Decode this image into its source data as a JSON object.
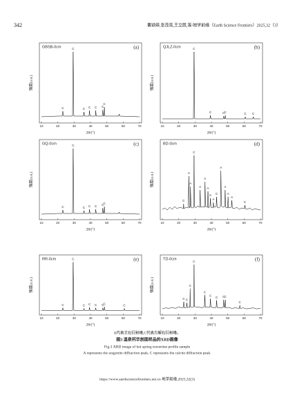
{
  "header": {
    "page": "342",
    "running_title": "曹颖婷,张茂亮,王立胜,等/地学前缘（Earth Science Frontiers）2025,32（3）"
  },
  "chart_data": [
    {
      "type": "line",
      "title": "GBSB-0cm",
      "panel": "(a)",
      "color": "#000000",
      "xlabel": "2θ/(°)",
      "ylabel": "强度(a.u.)",
      "xlim": [
        10,
        70
      ],
      "xticks": [
        10,
        20,
        30,
        40,
        50,
        60,
        70
      ],
      "ylim": [
        0,
        110
      ],
      "x": [
        10,
        20,
        22.7,
        23.1,
        23.5,
        29,
        29.4,
        29.8,
        35.7,
        36,
        36.3,
        39.1,
        39.4,
        39.7,
        43,
        43.2,
        43.5,
        47.2,
        47.5,
        47.8,
        48.2,
        48.5,
        48.8,
        57.2,
        57.5,
        57.8,
        70
      ],
      "values": [
        6,
        7,
        7,
        14,
        7,
        7,
        100,
        7,
        7,
        13,
        7,
        7,
        15,
        7,
        7,
        15,
        7,
        7,
        16,
        7,
        7,
        20,
        7,
        7,
        10,
        7,
        6
      ],
      "annotations": [
        {
          "text": "C",
          "x": 23.1,
          "y": 14
        },
        {
          "text": "C",
          "x": 29.4,
          "y": 100
        },
        {
          "text": "C",
          "x": 36,
          "y": 13
        },
        {
          "text": "C",
          "x": 39.4,
          "y": 15
        },
        {
          "text": "C",
          "x": 43.2,
          "y": 15
        },
        {
          "text": "C",
          "x": 47.5,
          "y": 16
        },
        {
          "text": "C",
          "x": 48.5,
          "y": 20
        }
      ]
    },
    {
      "type": "line",
      "title": "QJLZ-0cm",
      "panel": "(b)",
      "color": "#000000",
      "xlabel": "2θ/(°)",
      "ylabel": "强度(a.u.)",
      "xlim": [
        10,
        70
      ],
      "xticks": [
        10,
        20,
        30,
        40,
        50,
        60,
        70
      ],
      "ylim": [
        0,
        110
      ],
      "x": [
        10,
        29,
        29.4,
        29.8,
        39.1,
        39.4,
        39.7,
        47.2,
        47.5,
        47.8,
        48.2,
        48.5,
        48.8,
        60.4,
        60.7,
        61,
        65.3,
        65.6,
        65.9,
        70
      ],
      "values": [
        3,
        3,
        100,
        3,
        3,
        8,
        3,
        3,
        7,
        3,
        3,
        8,
        3,
        3,
        6,
        3,
        3,
        6,
        3,
        3
      ],
      "annotations": [
        {
          "text": "C",
          "x": 29.4,
          "y": 100
        },
        {
          "text": "C",
          "x": 39.4,
          "y": 8
        },
        {
          "text": "C",
          "x": 47.5,
          "y": 7
        },
        {
          "text": "C",
          "x": 48.5,
          "y": 8
        },
        {
          "text": "C",
          "x": 60.7,
          "y": 6
        },
        {
          "text": "C",
          "x": 65.6,
          "y": 6
        }
      ]
    },
    {
      "type": "line",
      "title": "GQ-0cm",
      "panel": "(c)",
      "color": "#000000",
      "xlabel": "2θ/(°)",
      "ylabel": "强度(a.u.)",
      "xlim": [
        10,
        70
      ],
      "xticks": [
        10,
        20,
        30,
        40,
        50,
        60,
        70
      ],
      "ylim": [
        0,
        110
      ],
      "x": [
        10,
        20,
        22.7,
        23.1,
        23.5,
        29,
        29.4,
        29.8,
        35.7,
        36,
        36.3,
        39.1,
        39.4,
        39.7,
        43,
        43.2,
        43.5,
        47.2,
        47.5,
        47.8,
        48.2,
        48.5,
        48.8,
        57.2,
        57.5,
        57.8,
        70
      ],
      "values": [
        5,
        6,
        6,
        11,
        6,
        6,
        100,
        6,
        6,
        10,
        6,
        6,
        12,
        6,
        6,
        12,
        6,
        6,
        14,
        6,
        6,
        16,
        6,
        6,
        8,
        6,
        5
      ],
      "annotations": [
        {
          "text": "C",
          "x": 23.1,
          "y": 11
        },
        {
          "text": "C",
          "x": 29.4,
          "y": 100
        },
        {
          "text": "C",
          "x": 36,
          "y": 10
        },
        {
          "text": "C",
          "x": 39.4,
          "y": 12
        },
        {
          "text": "C",
          "x": 43.2,
          "y": 12
        },
        {
          "text": "C",
          "x": 47.5,
          "y": 14
        },
        {
          "text": "C",
          "x": 48.5,
          "y": 16
        }
      ]
    },
    {
      "type": "line",
      "title": "BD-0cm",
      "panel": "(d)",
      "color": "#000000",
      "xlabel": "2θ/(°)",
      "ylabel": "强度(a.u.)",
      "xlim": [
        10,
        70
      ],
      "xticks": [
        10,
        20,
        30,
        40,
        50,
        60,
        70
      ],
      "ylim": [
        0,
        110
      ],
      "x": [
        10,
        11.5,
        13,
        14.5,
        16,
        17.5,
        19,
        20.5,
        22,
        22.8,
        23,
        23.2,
        24.5,
        25.8,
        26.2,
        26.6,
        27,
        27.2,
        27.5,
        28.5,
        29.2,
        29.4,
        29.6,
        30.5,
        31.5,
        32.8,
        33.1,
        33.4,
        34.5,
        35.8,
        36.1,
        36.4,
        37.6,
        37.9,
        38.2,
        39.1,
        39.4,
        39.7,
        40.9,
        41.2,
        41.5,
        42.9,
        43.2,
        43.5,
        44.5,
        45.5,
        45.8,
        46.1,
        47,
        48.1,
        48.4,
        48.7,
        49.9,
        50.2,
        50.5,
        52.2,
        52.5,
        52.8,
        54,
        55.5,
        57,
        58.5,
        60.2,
        60.5,
        60.8,
        62,
        63.5,
        65,
        66.5,
        68,
        70
      ],
      "values": [
        12,
        14,
        11,
        15,
        12,
        16,
        13,
        15,
        14,
        13,
        20,
        13,
        15,
        14,
        60,
        14,
        16,
        45,
        15,
        14,
        15,
        90,
        16,
        14,
        17,
        15,
        40,
        15,
        16,
        15,
        52,
        16,
        15,
        38,
        14,
        16,
        28,
        15,
        14,
        22,
        15,
        16,
        30,
        15,
        14,
        16,
        68,
        17,
        15,
        16,
        40,
        15,
        14,
        30,
        14,
        15,
        25,
        14,
        13,
        15,
        12,
        14,
        13,
        18,
        13,
        12,
        14,
        11,
        13,
        12,
        11
      ],
      "annotations": [
        {
          "text": "C",
          "x": 23,
          "y": 20
        },
        {
          "text": "A",
          "x": 26.2,
          "y": 60
        },
        {
          "text": "A",
          "x": 27.2,
          "y": 45
        },
        {
          "text": "C",
          "x": 29.4,
          "y": 90
        },
        {
          "text": "A",
          "x": 33.1,
          "y": 40
        },
        {
          "text": "A",
          "x": 36.1,
          "y": 52
        },
        {
          "text": "A",
          "x": 37.9,
          "y": 38
        },
        {
          "text": "C",
          "x": 39.4,
          "y": 28
        },
        {
          "text": "A",
          "x": 41.2,
          "y": 22
        },
        {
          "text": "C",
          "x": 43.2,
          "y": 30
        },
        {
          "text": "A",
          "x": 45.8,
          "y": 68
        },
        {
          "text": "A",
          "x": 48.4,
          "y": 40
        },
        {
          "text": "A",
          "x": 50.2,
          "y": 30
        },
        {
          "text": "A",
          "x": 52.5,
          "y": 25
        },
        {
          "text": "C",
          "x": 60.5,
          "y": 18
        }
      ]
    },
    {
      "type": "line",
      "title": "RR-0cm",
      "panel": "(e)",
      "color": "#000000",
      "xlabel": "2θ/(°)",
      "ylabel": "强度(a.u.)",
      "xlim": [
        10,
        70
      ],
      "xticks": [
        10,
        20,
        30,
        40,
        50,
        60,
        70
      ],
      "ylim": [
        0,
        110
      ],
      "x": [
        10,
        22.8,
        23.1,
        23.4,
        29,
        29.4,
        29.8,
        35.7,
        36,
        36.3,
        39.1,
        39.4,
        39.7,
        42.9,
        43.2,
        43.5,
        47.2,
        47.5,
        47.8,
        48.2,
        48.5,
        48.8,
        60.4,
        60.7,
        61,
        70
      ],
      "values": [
        5,
        5,
        10,
        5,
        5,
        100,
        5,
        5,
        9,
        5,
        5,
        11,
        5,
        5,
        10,
        5,
        5,
        10,
        5,
        5,
        12,
        5,
        5,
        9,
        5,
        5
      ],
      "annotations": [
        {
          "text": "C",
          "x": 23.1,
          "y": 10
        },
        {
          "text": "C",
          "x": 29.4,
          "y": 100
        },
        {
          "text": "C",
          "x": 36,
          "y": 9
        },
        {
          "text": "C",
          "x": 39.4,
          "y": 11
        },
        {
          "text": "C",
          "x": 43.2,
          "y": 10
        },
        {
          "text": "C",
          "x": 47.5,
          "y": 10
        },
        {
          "text": "C",
          "x": 48.5,
          "y": 12
        },
        {
          "text": "C",
          "x": 60.7,
          "y": 9
        }
      ]
    },
    {
      "type": "line",
      "title": "TD-0cm",
      "panel": "(f)",
      "color": "#000000",
      "xlabel": "2θ/(°)",
      "ylabel": "强度(a.u.)",
      "xlim": [
        10,
        70
      ],
      "xticks": [
        10,
        20,
        30,
        40,
        50,
        60,
        70
      ],
      "ylim": [
        0,
        110
      ],
      "x": [
        10,
        12,
        14,
        16,
        18,
        20,
        21.8,
        22.8,
        23.1,
        23.4,
        24.7,
        25,
        25.3,
        26.1,
        26.8,
        27,
        27.2,
        28.3,
        29.2,
        29.4,
        29.6,
        31,
        32.5,
        34,
        35.7,
        36,
        36.3,
        37.5,
        39.1,
        39.4,
        39.7,
        41.5,
        42.9,
        43.2,
        43.5,
        45,
        47.2,
        47.5,
        47.8,
        48.2,
        48.5,
        48.8,
        50.5,
        52.5,
        54.5,
        57.1,
        57.4,
        57.7,
        59.5,
        61.5,
        63.5,
        65.5,
        67.5,
        70
      ],
      "values": [
        8,
        10,
        9,
        11,
        9,
        12,
        10,
        11,
        22,
        10,
        11,
        20,
        10,
        12,
        11,
        48,
        12,
        11,
        12,
        95,
        13,
        11,
        12,
        10,
        12,
        35,
        11,
        12,
        11,
        28,
        12,
        10,
        11,
        25,
        11,
        10,
        11,
        26,
        11,
        11,
        26,
        10,
        11,
        9,
        10,
        9,
        15,
        9,
        10,
        8,
        9,
        10,
        8,
        9
      ],
      "annotations": [
        {
          "text": "C",
          "x": 23.1,
          "y": 22
        },
        {
          "text": "C",
          "x": 25,
          "y": 20
        },
        {
          "text": "C",
          "x": 27,
          "y": 48
        },
        {
          "text": "C",
          "x": 29.4,
          "y": 95
        },
        {
          "text": "C",
          "x": 36,
          "y": 35
        },
        {
          "text": "C",
          "x": 39.4,
          "y": 28
        },
        {
          "text": "C",
          "x": 43.2,
          "y": 25
        },
        {
          "text": "C",
          "x": 47.5,
          "y": 26
        },
        {
          "text": "C",
          "x": 48.5,
          "y": 26
        },
        {
          "text": "C",
          "x": 57.4,
          "y": 15
        }
      ]
    }
  ],
  "caption": {
    "note": "A代表文石衍射峰,C代表方解石衍射峰。",
    "title_cn": "图3  温泉钙华剖面样品的XRD图像",
    "title_en": "Fig.3  XRD image of hot spring travertine profile sample",
    "note_en": "A represents the aragonite diffraction peak, C represents the calcite diffraction peak."
  },
  "footer": "https://www.earthsciencefrontiers.net.cn  地学前缘,2025,32(3)"
}
